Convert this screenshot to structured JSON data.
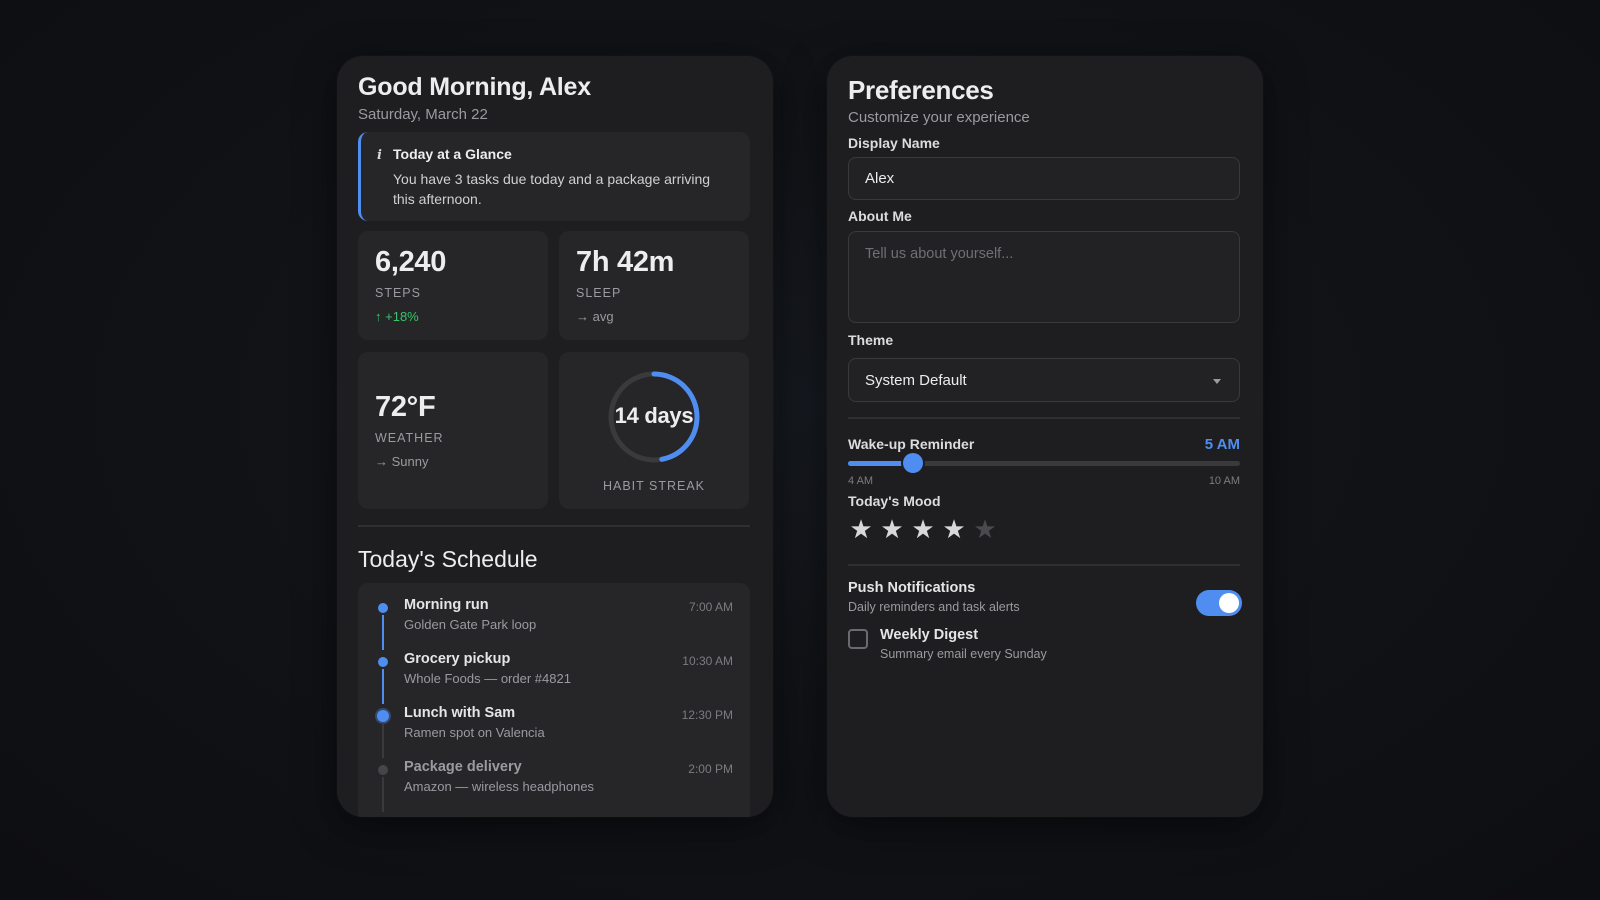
{
  "dashboard": {
    "greeting": "Good Morning, Alex",
    "date": "Saturday, March 22",
    "glance": {
      "icon": "info-icon",
      "icon_glyph": "i",
      "title": "Today at a Glance",
      "body": "You have 3 tasks due today and a package arriving this afternoon."
    },
    "stats": {
      "steps": {
        "value": "6,240",
        "label": "STEPS",
        "trend_icon": "↑",
        "trend_text": "+18%",
        "trend_color": "#39c46a"
      },
      "sleep": {
        "value": "7h 42m",
        "label": "SLEEP",
        "trend_icon": "→",
        "trend_text": "avg"
      },
      "weather": {
        "value": "72°F",
        "label": "WEATHER",
        "trend_icon": "→",
        "trend_text": "Sunny"
      },
      "streak": {
        "value": "14 days",
        "label": "HABIT STREAK",
        "progress": 0.47
      }
    },
    "schedule": {
      "title": "Today's Schedule",
      "items": [
        {
          "name": "Morning run",
          "detail": "Golden Gate Park loop",
          "time": "7:00 AM",
          "state": "done"
        },
        {
          "name": "Grocery pickup",
          "detail": "Whole Foods — order #4821",
          "time": "10:30 AM",
          "state": "done"
        },
        {
          "name": "Lunch with Sam",
          "detail": "Ramen spot on Valencia",
          "time": "12:30 PM",
          "state": "current"
        },
        {
          "name": "Package delivery",
          "detail": "Amazon — wireless headphones",
          "time": "2:00 PM",
          "state": "upcoming"
        }
      ]
    }
  },
  "preferences": {
    "title": "Preferences",
    "subtitle": "Customize your experience",
    "display_name": {
      "label": "Display Name",
      "value": "Alex"
    },
    "about_me": {
      "label": "About Me",
      "placeholder": "Tell us about yourself...",
      "value": ""
    },
    "theme": {
      "label": "Theme",
      "value": "System Default"
    },
    "wake_reminder": {
      "label": "Wake-up Reminder",
      "value_text": "5 AM",
      "min_label": "4 AM",
      "max_label": "10 AM",
      "value_hour": 5,
      "min_hour": 4,
      "max_hour": 10
    },
    "mood": {
      "label": "Today's Mood",
      "rating": 4,
      "max": 5,
      "star_glyph": "★"
    },
    "push_notifications": {
      "title": "Push Notifications",
      "subtitle": "Daily reminders and task alerts",
      "enabled": true
    },
    "weekly_digest": {
      "title": "Weekly Digest",
      "subtitle": "Summary email every Sunday",
      "checked": false
    }
  },
  "colors": {
    "accent": "#4f8ef0",
    "positive": "#39c46a",
    "panel": "#1e1e20",
    "card": "#262628"
  }
}
